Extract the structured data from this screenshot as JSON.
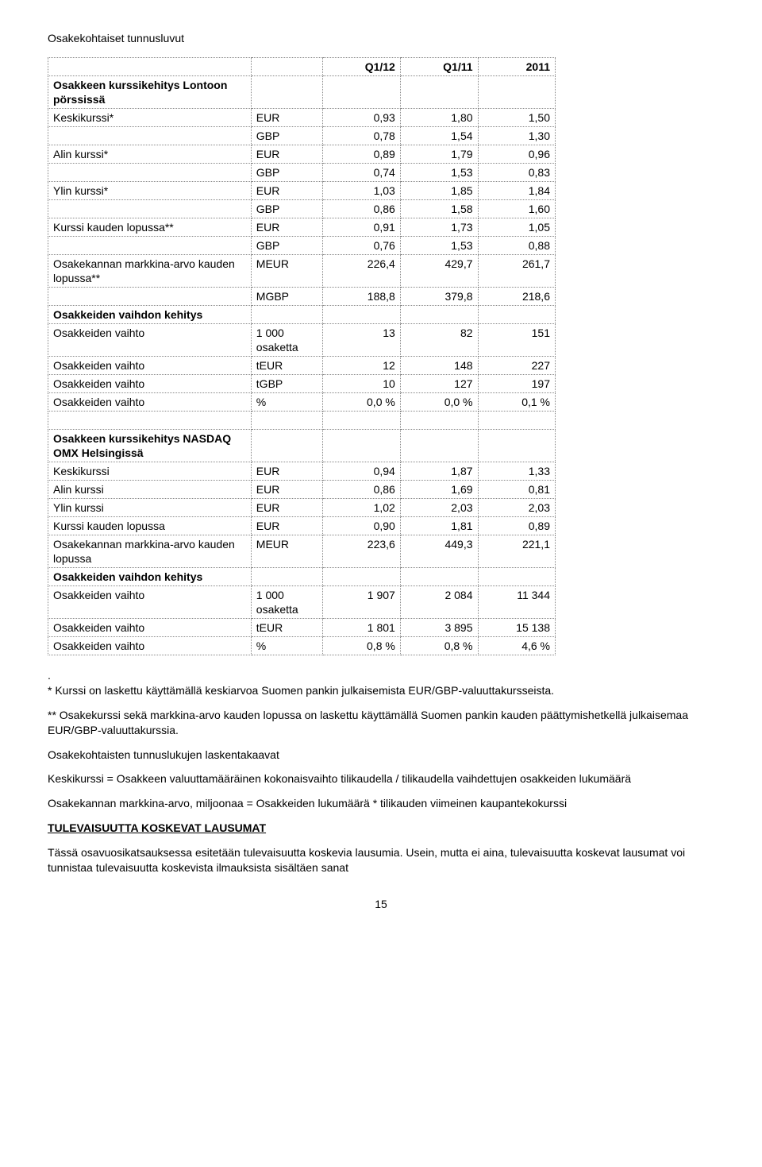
{
  "title": "Osakekohtaiset tunnusluvut",
  "table1": {
    "header": {
      "c1": "Q1/12",
      "c2": "Q1/11",
      "c3": "2011"
    },
    "section1_label": "Osakkeen kurssikehitys Lontoon pörssissä",
    "rows": [
      {
        "label": "Keskikurssi*",
        "unit": "EUR",
        "v1": "0,93",
        "v2": "1,80",
        "v3": "1,50"
      },
      {
        "label": "",
        "unit": "GBP",
        "v1": "0,78",
        "v2": "1,54",
        "v3": "1,30"
      },
      {
        "label": "Alin kurssi*",
        "unit": "EUR",
        "v1": "0,89",
        "v2": "1,79",
        "v3": "0,96"
      },
      {
        "label": "",
        "unit": "GBP",
        "v1": "0,74",
        "v2": "1,53",
        "v3": "0,83"
      },
      {
        "label": "Ylin kurssi*",
        "unit": "EUR",
        "v1": "1,03",
        "v2": "1,85",
        "v3": "1,84"
      },
      {
        "label": "",
        "unit": "GBP",
        "v1": "0,86",
        "v2": "1,58",
        "v3": "1,60"
      },
      {
        "label": "Kurssi kauden lopussa**",
        "unit": "EUR",
        "v1": "0,91",
        "v2": "1,73",
        "v3": "1,05"
      },
      {
        "label": "",
        "unit": "GBP",
        "v1": "0,76",
        "v2": "1,53",
        "v3": "0,88"
      },
      {
        "label": "Osakekannan markkina-arvo kauden lopussa**",
        "unit": "MEUR",
        "v1": "226,4",
        "v2": "429,7",
        "v3": "261,7"
      },
      {
        "label": "",
        "unit": "MGBP",
        "v1": "188,8",
        "v2": "379,8",
        "v3": "218,6"
      }
    ],
    "section2_label": "Osakkeiden vaihdon kehitys",
    "rows2": [
      {
        "label": "Osakkeiden vaihto",
        "unit": "1 000 osaketta",
        "v1": "13",
        "v2": "82",
        "v3": "151"
      },
      {
        "label": "Osakkeiden vaihto",
        "unit": "tEUR",
        "v1": "12",
        "v2": "148",
        "v3": "227"
      },
      {
        "label": "Osakkeiden vaihto",
        "unit": "tGBP",
        "v1": "10",
        "v2": "127",
        "v3": "197"
      },
      {
        "label": "Osakkeiden vaihto",
        "unit": "%",
        "v1": "0,0 %",
        "v2": "0,0 %",
        "v3": "0,1 %"
      }
    ],
    "section3_label": "Osakkeen kurssikehitys NASDAQ OMX Helsingissä",
    "rows3": [
      {
        "label": "Keskikurssi",
        "unit": "EUR",
        "v1": "0,94",
        "v2": "1,87",
        "v3": "1,33"
      },
      {
        "label": "Alin kurssi",
        "unit": "EUR",
        "v1": "0,86",
        "v2": "1,69",
        "v3": "0,81"
      },
      {
        "label": "Ylin kurssi",
        "unit": "EUR",
        "v1": "1,02",
        "v2": "2,03",
        "v3": "2,03"
      },
      {
        "label": "Kurssi kauden lopussa",
        "unit": "EUR",
        "v1": "0,90",
        "v2": "1,81",
        "v3": "0,89"
      },
      {
        "label": "Osakekannan markkina-arvo kauden lopussa",
        "unit": "MEUR",
        "v1": "223,6",
        "v2": "449,3",
        "v3": "221,1"
      }
    ],
    "section4_label": "Osakkeiden vaihdon kehitys",
    "rows4": [
      {
        "label": "Osakkeiden vaihto",
        "unit": "1 000 osaketta",
        "v1": "1 907",
        "v2": "2 084",
        "v3": "11 344"
      },
      {
        "label": "Osakkeiden vaihto",
        "unit": "tEUR",
        "v1": "1 801",
        "v2": "3 895",
        "v3": "15 138"
      },
      {
        "label": "Osakkeiden vaihto",
        "unit": "%",
        "v1": "0,8 %",
        "v2": "0,8 %",
        "v3": "4,6 %"
      }
    ]
  },
  "dot": ".",
  "para1": "* Kurssi on laskettu käyttämällä keskiarvoa Suomen pankin julkaisemista EUR/GBP-valuuttakursseista.",
  "para2": "** Osakekurssi sekä markkina-arvo kauden lopussa on laskettu käyttämällä Suomen pankin kauden päättymishetkellä julkaisemaa EUR/GBP-valuuttakurssia.",
  "para3": "Osakekohtaisten tunnuslukujen laskentakaavat",
  "para4": "Keskikurssi = Osakkeen valuuttamääräinen kokonaisvaihto tilikaudella / tilikaudella vaihdettujen osakkeiden lukumäärä",
  "para5": "Osakekannan markkina-arvo, miljoonaa = Osakkeiden lukumäärä * tilikauden viimeinen kaupantekokurssi",
  "heading2": "TULEVAISUUTTA KOSKEVAT LAUSUMAT",
  "para6": "Tässä osavuosikatsauksessa esitetään tulevaisuutta koskevia lausumia. Usein, mutta ei aina, tulevaisuutta koskevat lausumat voi tunnistaa tulevaisuutta koskevista ilmauksista sisältäen sanat",
  "pageNum": "15"
}
